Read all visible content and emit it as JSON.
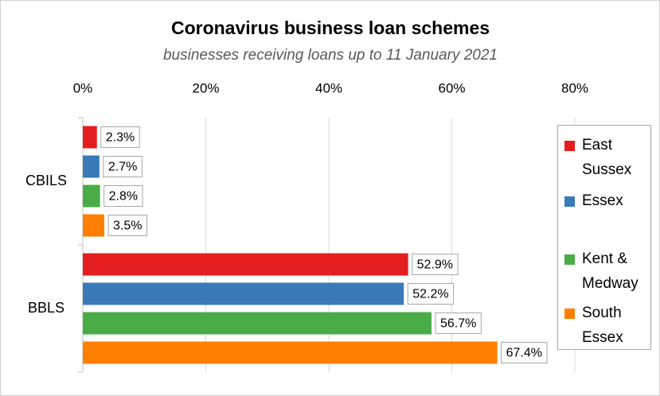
{
  "chart_data": {
    "type": "bar",
    "orientation": "horizontal",
    "title": "Coronavirus business loan schemes",
    "subtitle": "businesses receiving loans up to 11 January 2021",
    "categories": [
      "CBILS",
      "BBLS"
    ],
    "series": [
      {
        "name": "East Sussex",
        "color": "#e41e1e",
        "values": [
          2.3,
          52.9
        ],
        "value_labels": [
          "2.3%",
          "52.9%"
        ]
      },
      {
        "name": "Essex",
        "color": "#3a7ab8",
        "values": [
          2.7,
          52.2
        ],
        "value_labels": [
          "2.7%",
          "52.2%"
        ]
      },
      {
        "name": "Kent & Medway",
        "color": "#4aac47",
        "values": [
          2.8,
          56.7
        ],
        "value_labels": [
          "2.8%",
          "56.7%"
        ]
      },
      {
        "name": "South Essex",
        "color": "#ff7f00",
        "values": [
          3.5,
          67.4
        ],
        "value_labels": [
          "3.5%",
          "67.4%"
        ]
      }
    ],
    "xlim": [
      0,
      80
    ],
    "xticks": [
      {
        "value": 0,
        "label": "0%"
      },
      {
        "value": 20,
        "label": "20%"
      },
      {
        "value": 40,
        "label": "40%"
      },
      {
        "value": 60,
        "label": "60%"
      },
      {
        "value": 80,
        "label": "80%"
      }
    ],
    "grid": true,
    "legend": "right"
  }
}
